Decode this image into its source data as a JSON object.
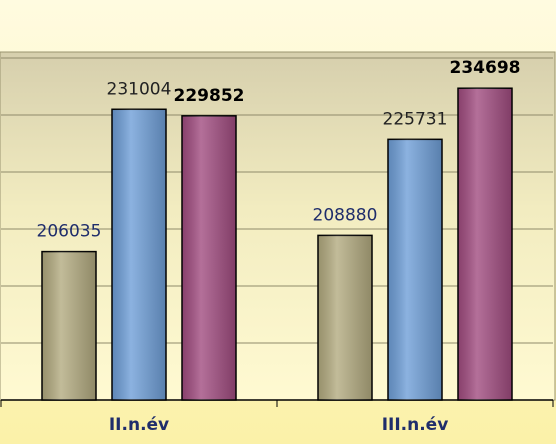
{
  "chart_data": {
    "type": "bar",
    "categories": [
      "II.n.év",
      "III.n.év"
    ],
    "series": [
      {
        "color": "#b3ab80",
        "label_color": "#1f2d6b",
        "label_bold": false,
        "values": [
          206035,
          208880
        ]
      },
      {
        "color": "#6f9fd8",
        "label_color": "#222222",
        "label_bold": false,
        "values": [
          231004,
          225731
        ]
      },
      {
        "color": "#a14c80",
        "label_color": "#000000",
        "label_bold": true,
        "values": [
          229852,
          234698
        ]
      }
    ],
    "ylim": [
      180000,
      240000
    ],
    "yticks": [
      180000,
      190000,
      200000,
      210000,
      220000,
      230000,
      240000
    ],
    "grid": true
  }
}
